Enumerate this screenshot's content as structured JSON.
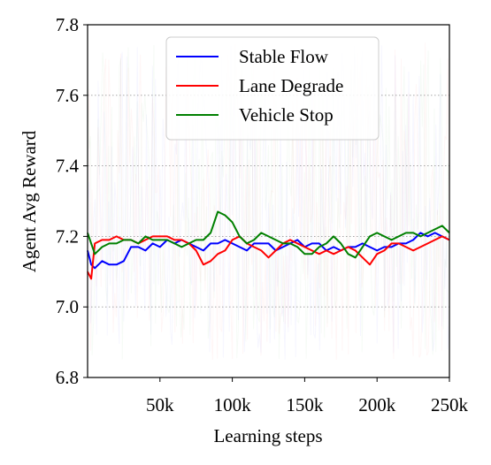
{
  "chart_data": {
    "type": "line",
    "title": "",
    "xlabel": "Learning steps",
    "ylabel": "Agent Avg Reward",
    "xlim": [
      0,
      250000
    ],
    "ylim": [
      6.8,
      7.8
    ],
    "xticks": [
      50000,
      100000,
      150000,
      200000,
      250000
    ],
    "xtick_labels": [
      "50k",
      "100k",
      "150k",
      "200k",
      "250k"
    ],
    "yticks": [
      6.8,
      7.0,
      7.2,
      7.4,
      7.6,
      7.8
    ],
    "ytick_labels": [
      "6.8",
      "7.0",
      "7.2",
      "7.4",
      "7.6",
      "7.8"
    ],
    "grid": "horizontal dotted",
    "legend_position": "top-center",
    "raw_noise_range": [
      6.85,
      7.75
    ],
    "series": [
      {
        "name": "Stable Flow",
        "color": "#0000ff",
        "x": [
          0,
          2500,
          5000,
          10000,
          15000,
          20000,
          25000,
          30000,
          35000,
          40000,
          45000,
          50000,
          55000,
          60000,
          65000,
          70000,
          75000,
          80000,
          85000,
          90000,
          95000,
          100000,
          105000,
          110000,
          115000,
          120000,
          125000,
          130000,
          135000,
          140000,
          145000,
          150000,
          155000,
          160000,
          165000,
          170000,
          175000,
          180000,
          185000,
          190000,
          195000,
          200000,
          205000,
          210000,
          215000,
          220000,
          225000,
          230000,
          235000,
          240000,
          245000,
          250000
        ],
        "y": [
          7.16,
          7.12,
          7.11,
          7.13,
          7.12,
          7.12,
          7.13,
          7.17,
          7.17,
          7.16,
          7.18,
          7.17,
          7.19,
          7.18,
          7.19,
          7.18,
          7.17,
          7.16,
          7.18,
          7.18,
          7.19,
          7.18,
          7.17,
          7.16,
          7.18,
          7.18,
          7.18,
          7.16,
          7.17,
          7.18,
          7.19,
          7.17,
          7.18,
          7.18,
          7.16,
          7.17,
          7.16,
          7.17,
          7.17,
          7.18,
          7.17,
          7.16,
          7.17,
          7.17,
          7.18,
          7.18,
          7.19,
          7.21,
          7.2,
          7.21,
          7.2,
          7.19
        ]
      },
      {
        "name": "Lane Degrade",
        "color": "#ff0000",
        "x": [
          0,
          2500,
          5000,
          10000,
          15000,
          20000,
          25000,
          30000,
          35000,
          40000,
          45000,
          50000,
          55000,
          60000,
          65000,
          70000,
          75000,
          80000,
          85000,
          90000,
          95000,
          100000,
          105000,
          110000,
          115000,
          120000,
          125000,
          130000,
          135000,
          140000,
          145000,
          150000,
          155000,
          160000,
          165000,
          170000,
          175000,
          180000,
          185000,
          190000,
          195000,
          200000,
          205000,
          210000,
          215000,
          220000,
          225000,
          230000,
          235000,
          240000,
          245000,
          250000
        ],
        "y": [
          7.1,
          7.08,
          7.18,
          7.19,
          7.19,
          7.2,
          7.19,
          7.19,
          7.18,
          7.19,
          7.2,
          7.2,
          7.2,
          7.19,
          7.19,
          7.18,
          7.16,
          7.12,
          7.13,
          7.15,
          7.16,
          7.19,
          7.2,
          7.18,
          7.17,
          7.16,
          7.14,
          7.16,
          7.18,
          7.19,
          7.18,
          7.17,
          7.16,
          7.15,
          7.16,
          7.15,
          7.16,
          7.17,
          7.16,
          7.14,
          7.12,
          7.15,
          7.16,
          7.18,
          7.18,
          7.17,
          7.16,
          7.17,
          7.18,
          7.19,
          7.2,
          7.19
        ]
      },
      {
        "name": "Vehicle Stop",
        "color": "#008000",
        "x": [
          0,
          2500,
          5000,
          10000,
          15000,
          20000,
          25000,
          30000,
          35000,
          40000,
          45000,
          50000,
          55000,
          60000,
          65000,
          70000,
          75000,
          80000,
          85000,
          90000,
          95000,
          100000,
          105000,
          110000,
          115000,
          120000,
          125000,
          130000,
          135000,
          140000,
          145000,
          150000,
          155000,
          160000,
          165000,
          170000,
          175000,
          180000,
          185000,
          190000,
          195000,
          200000,
          205000,
          210000,
          215000,
          220000,
          225000,
          230000,
          235000,
          240000,
          245000,
          250000
        ],
        "y": [
          7.21,
          7.18,
          7.15,
          7.17,
          7.18,
          7.18,
          7.19,
          7.19,
          7.18,
          7.2,
          7.19,
          7.19,
          7.19,
          7.18,
          7.17,
          7.18,
          7.19,
          7.19,
          7.21,
          7.27,
          7.26,
          7.24,
          7.2,
          7.18,
          7.19,
          7.21,
          7.2,
          7.19,
          7.18,
          7.18,
          7.17,
          7.15,
          7.15,
          7.17,
          7.18,
          7.2,
          7.18,
          7.15,
          7.14,
          7.17,
          7.2,
          7.21,
          7.2,
          7.19,
          7.2,
          7.21,
          7.21,
          7.2,
          7.21,
          7.22,
          7.23,
          7.21
        ]
      }
    ]
  }
}
